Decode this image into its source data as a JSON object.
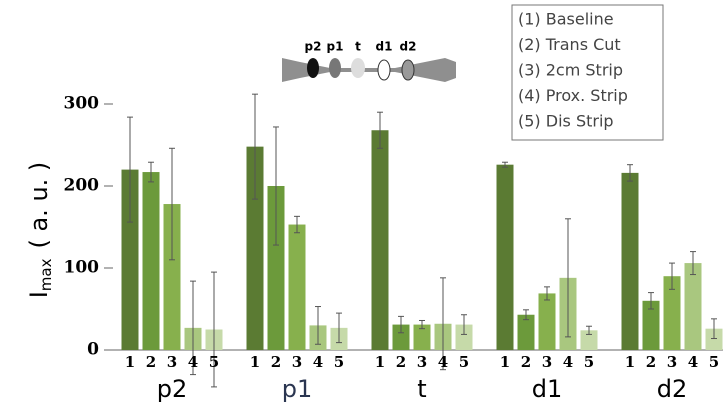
{
  "chart_data": {
    "type": "bar",
    "categories": [
      "p2",
      "p1",
      "t",
      "d1",
      "d2"
    ],
    "bar_labels": [
      "1",
      "2",
      "3",
      "4",
      "5"
    ],
    "y_label": {
      "main": "I",
      "sub": "max",
      "unit": "( a. u. )"
    },
    "ylim": [
      0,
      320
    ],
    "yticks": [
      0,
      100,
      200,
      300
    ],
    "legend_position": "upper right",
    "diagram_labels": [
      "p2",
      "p1",
      "t",
      "d1",
      "d2"
    ],
    "series": [
      {
        "name": "(1) Baseline",
        "color": "#5b7b33",
        "values": [
          220,
          248,
          268,
          226,
          216
        ],
        "errors": [
          64,
          64,
          22,
          3,
          10
        ]
      },
      {
        "name": "(2) Trans Cut",
        "color": "#6c9a3b",
        "values": [
          217,
          200,
          31,
          43,
          60
        ],
        "errors": [
          12,
          72,
          10,
          6,
          10
        ]
      },
      {
        "name": "(3) 2cm Strip",
        "color": "#87b04d",
        "values": [
          178,
          153,
          31,
          69,
          90
        ],
        "errors": [
          68,
          10,
          5,
          8,
          16
        ]
      },
      {
        "name": "(4) Prox. Strip",
        "color": "#a9c77f",
        "values": [
          27,
          30,
          32,
          88,
          106
        ],
        "errors": [
          57,
          23,
          56,
          72,
          14
        ]
      },
      {
        "name": "(5) Dis Strip",
        "color": "#c6daa9",
        "values": [
          25,
          27,
          31,
          24,
          26
        ],
        "errors": [
          70,
          18,
          12,
          5,
          12
        ]
      }
    ]
  }
}
